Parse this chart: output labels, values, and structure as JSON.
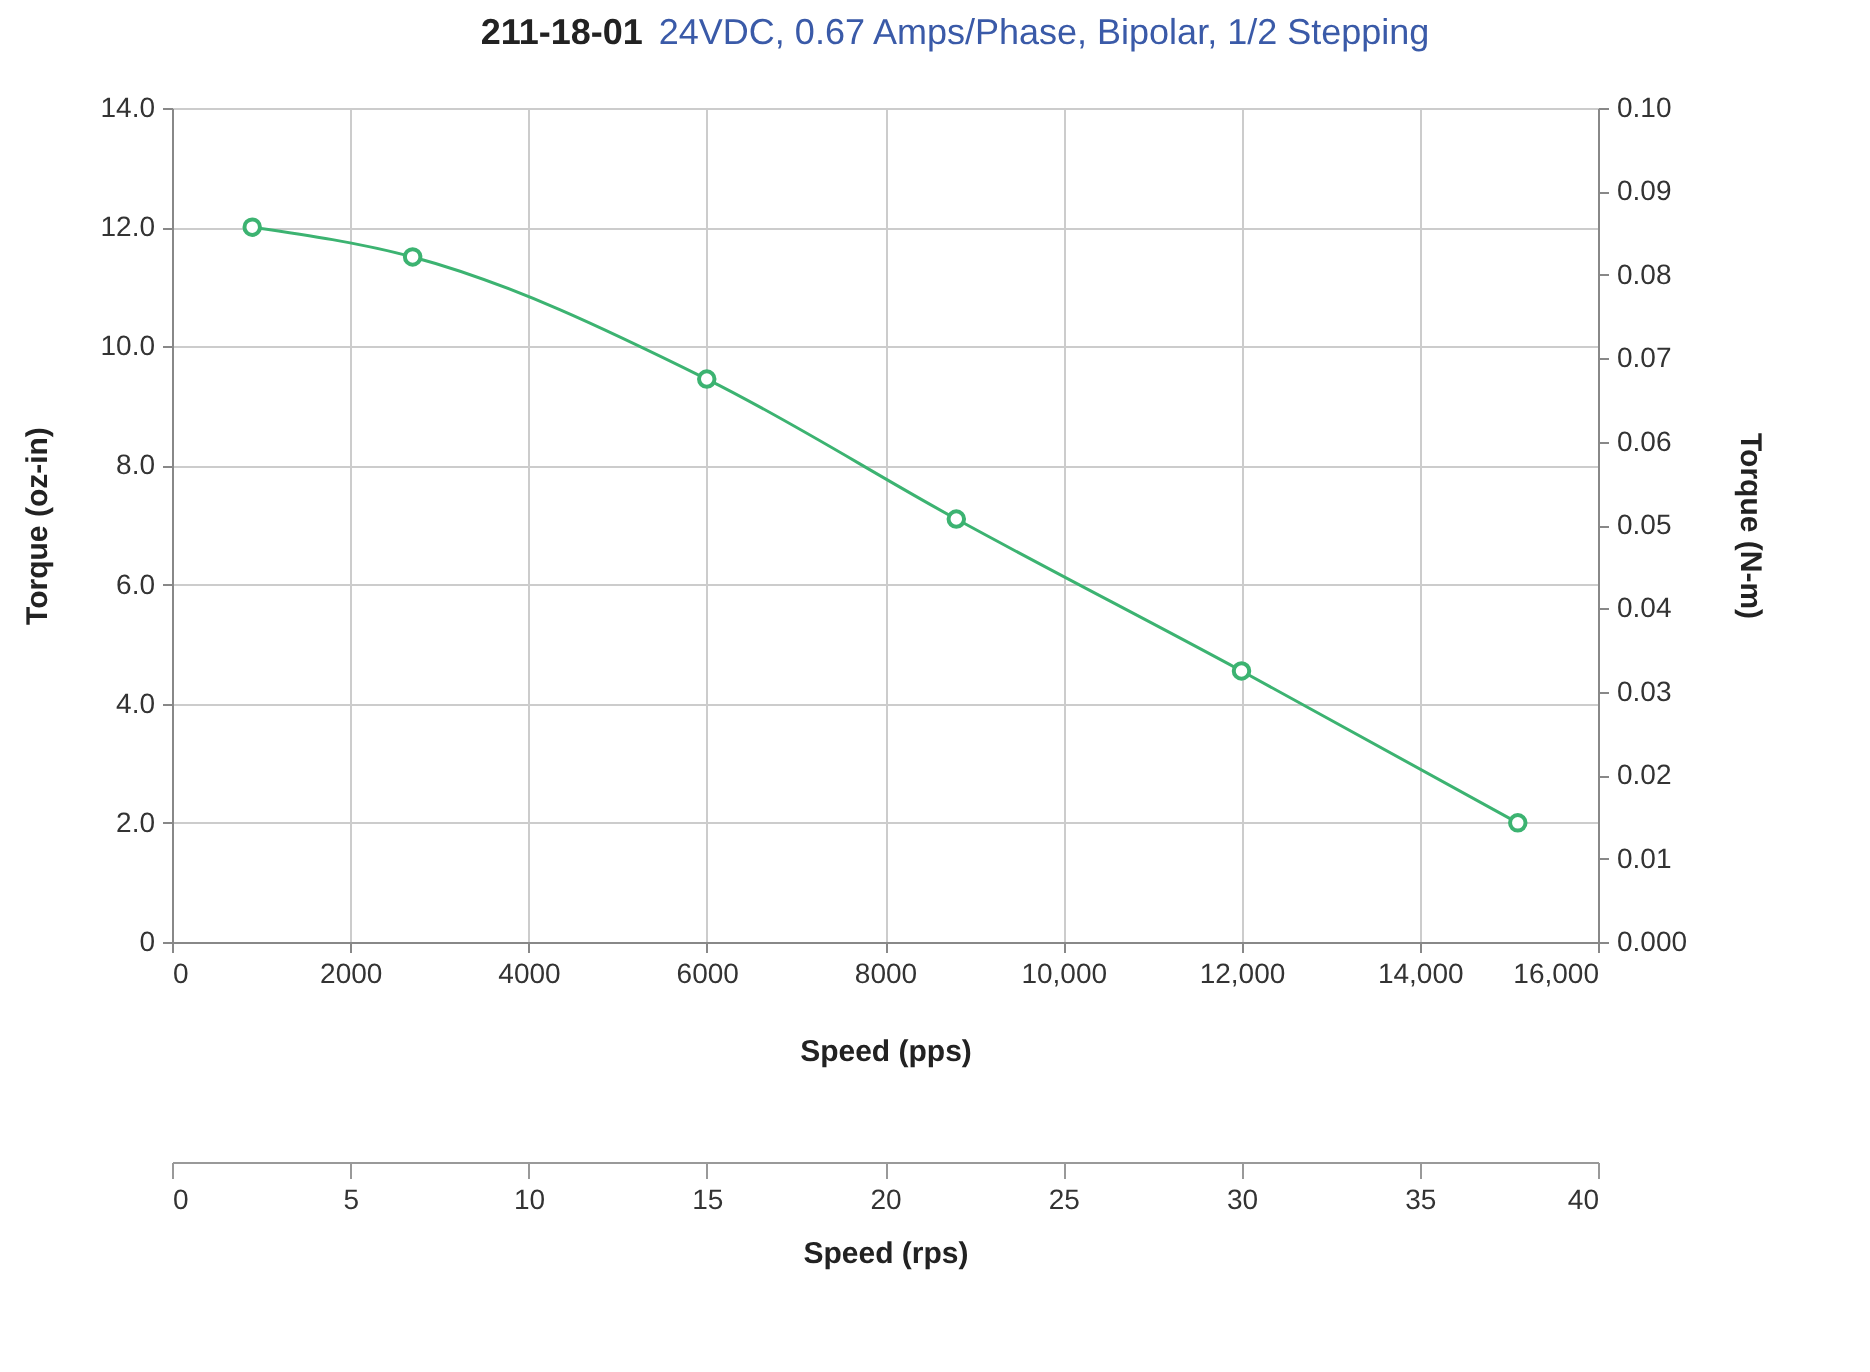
{
  "chart_data": {
    "type": "line",
    "title": "211-18-01",
    "subtitle": "24VDC, 0.67 Amps/Phase, Bipolar, 1/2 Stepping",
    "xlabel": "Speed (pps)",
    "ylabel": "Torque (oz-in)",
    "y2label": "Torque (N-m)",
    "x2label": "Speed (rps)",
    "series": [
      {
        "color": "#3cb371",
        "x": [
          900,
          2700,
          6000,
          8800,
          12000,
          15100
        ],
        "values": [
          12.0,
          11.5,
          9.45,
          7.1,
          4.55,
          2.0
        ]
      }
    ],
    "xlim": [
      0,
      16000
    ],
    "xticks": [
      0,
      2000,
      4000,
      6000,
      8000,
      {
        "value": 10000,
        "label": "10,000"
      },
      {
        "value": 12000,
        "label": "12,000"
      },
      {
        "value": 14000,
        "label": "14,000"
      },
      {
        "value": 16000,
        "label": "16,000"
      }
    ],
    "ylim": [
      0,
      14
    ],
    "yticks": [
      0,
      {
        "value": 2,
        "label": "2.0"
      },
      {
        "value": 4,
        "label": "4.0"
      },
      {
        "value": 6,
        "label": "6.0"
      },
      {
        "value": 8,
        "label": "8.0"
      },
      {
        "value": 10,
        "label": "10.0"
      },
      {
        "value": 12,
        "label": "12.0"
      },
      {
        "value": 14,
        "label": "14.0"
      }
    ],
    "y2lim": [
      0,
      0.1
    ],
    "y2ticks": [
      {
        "value": 0,
        "label": "0.000"
      },
      0.01,
      0.02,
      0.03,
      0.04,
      0.05,
      0.06,
      0.07,
      0.08,
      0.09,
      {
        "value": 0.1,
        "label": "0.10"
      }
    ],
    "x2lim": [
      0,
      40
    ],
    "x2ticks": [
      0,
      5,
      10,
      15,
      20,
      25,
      30,
      35,
      40
    ],
    "grid": true,
    "marker": "circle",
    "line_style": "solid"
  }
}
